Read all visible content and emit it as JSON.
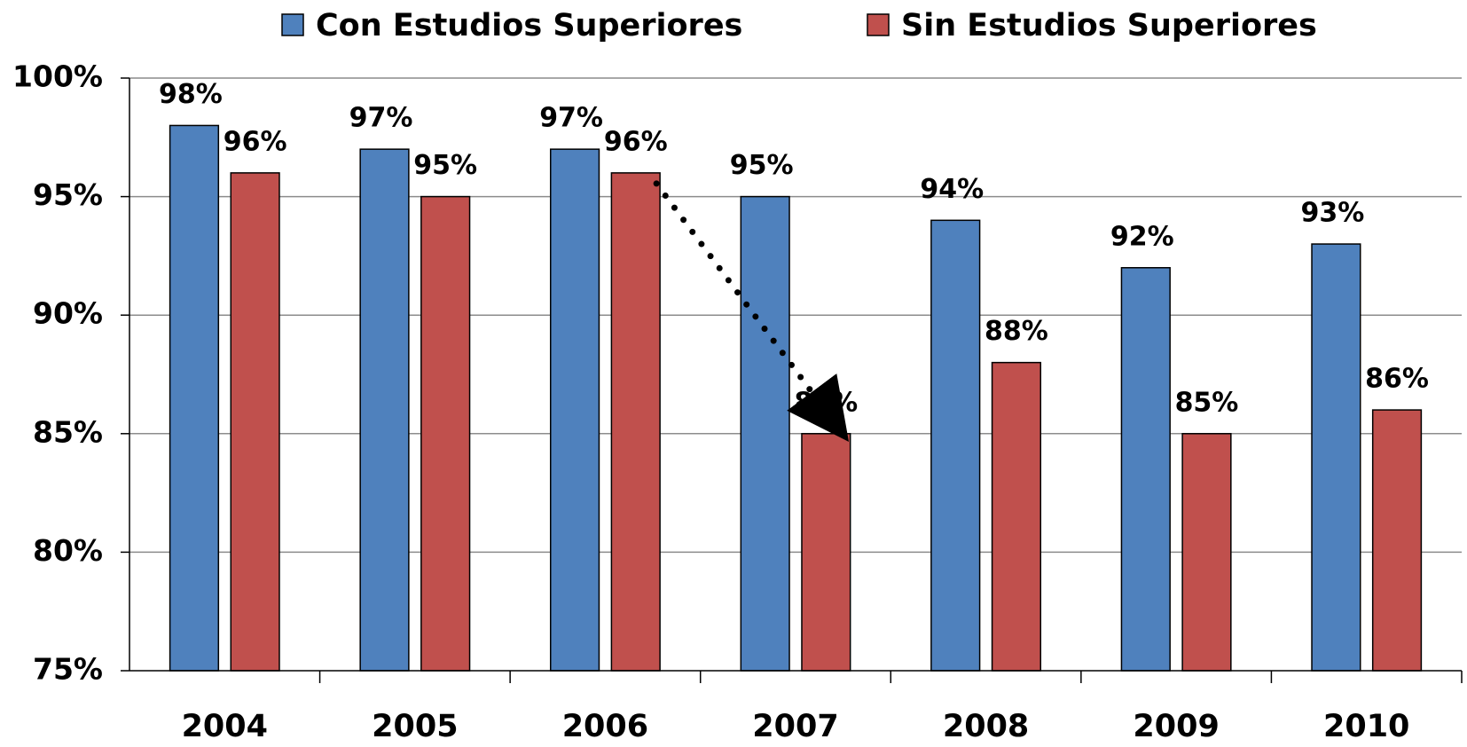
{
  "chart_data": {
    "type": "bar",
    "categories": [
      "2004",
      "2005",
      "2006",
      "2007",
      "2008",
      "2009",
      "2010"
    ],
    "series": [
      {
        "name": "Con Estudios Superiores",
        "color": "#4f81bd",
        "values": [
          98,
          97,
          97,
          95,
          94,
          92,
          93
        ],
        "value_labels": [
          "98%",
          "97%",
          "97%",
          "95%",
          "94%",
          "92%",
          "93%"
        ]
      },
      {
        "name": "Sin Estudios Superiores",
        "color": "#c0504d",
        "values": [
          96,
          95,
          96,
          85,
          88,
          85,
          86
        ],
        "value_labels": [
          "96%",
          "95%",
          "96%",
          "85%",
          "88%",
          "85%",
          "86%"
        ]
      }
    ],
    "ylim": [
      75,
      100
    ],
    "yticks": [
      {
        "value": 75,
        "label": "75%"
      },
      {
        "value": 80,
        "label": "80%"
      },
      {
        "value": 85,
        "label": "85%"
      },
      {
        "value": 90,
        "label": "90%"
      },
      {
        "value": 95,
        "label": "95%"
      },
      {
        "value": 100,
        "label": "100%"
      }
    ],
    "grid": true,
    "legend": "top"
  }
}
